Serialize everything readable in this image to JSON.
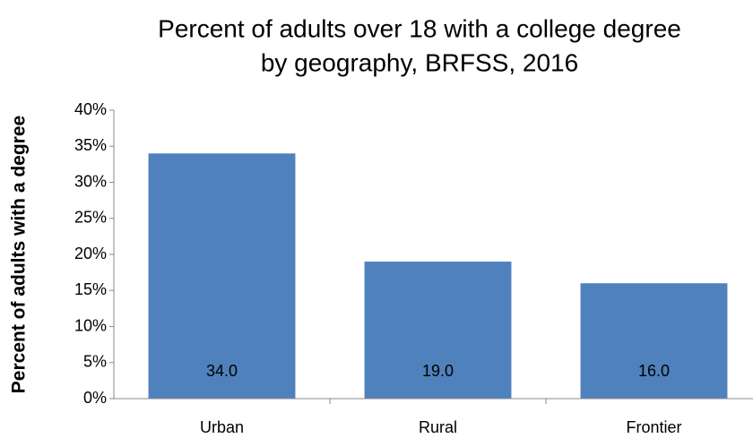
{
  "chart_data": {
    "type": "bar",
    "title": [
      "Percent of adults over 18 with a college degree",
      "by geography, BRFSS, 2016"
    ],
    "y_label": "Percent of adults with a degree",
    "categories": [
      "Urban",
      "Rural",
      "Frontier"
    ],
    "values": [
      34,
      19,
      16
    ],
    "value_labels": [
      "34.0",
      "19.0",
      "16.0"
    ],
    "color": "#4f81bd",
    "ylim": [
      0,
      40
    ],
    "yticks": [
      {
        "value": 0,
        "label": "0%"
      },
      {
        "value": 5,
        "label": "5%"
      },
      {
        "value": 10,
        "label": "10%"
      },
      {
        "value": 15,
        "label": "15%"
      },
      {
        "value": 20,
        "label": "20%"
      },
      {
        "value": 25,
        "label": "25%"
      },
      {
        "value": 30,
        "label": "30%"
      },
      {
        "value": 35,
        "label": "35%"
      },
      {
        "value": 40,
        "label": "40%"
      }
    ],
    "grid": false
  }
}
